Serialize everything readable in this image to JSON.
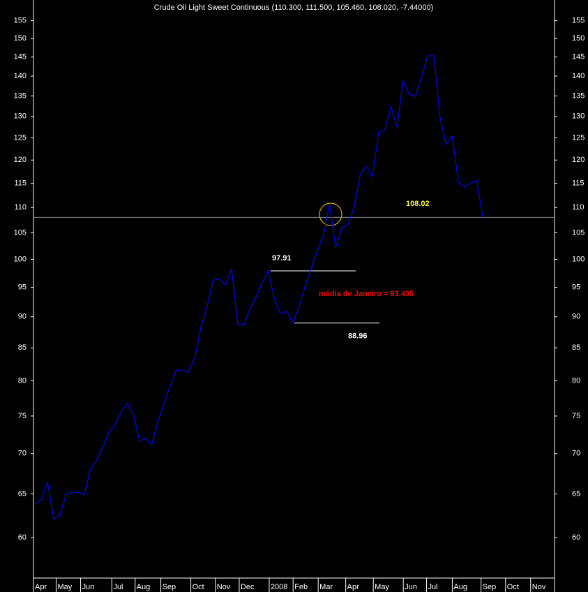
{
  "chart_data": {
    "type": "line",
    "title": "Crude Oil Light Sweet Continuous (110.300, 111.500, 105.460, 108.020, -7.44000)",
    "log_scale": true,
    "ylim": [
      55.7,
      161
    ],
    "yticks": [
      60,
      65,
      70,
      75,
      80,
      85,
      90,
      95,
      100,
      105,
      110,
      115,
      120,
      125,
      130,
      135,
      140,
      145,
      150,
      155
    ],
    "xlim": [
      -0.3,
      84.8
    ],
    "xticks": [
      {
        "value": -0.3,
        "label": "Apr"
      },
      {
        "value": 3.4,
        "label": "May"
      },
      {
        "value": 7.4,
        "label": "Jun"
      },
      {
        "value": 12.5,
        "label": "Jul"
      },
      {
        "value": 16.3,
        "label": "Aug"
      },
      {
        "value": 20.5,
        "label": "Sep"
      },
      {
        "value": 25.4,
        "label": "Oct"
      },
      {
        "value": 29.4,
        "label": "Nov"
      },
      {
        "value": 33.3,
        "label": "Dec"
      },
      {
        "value": 38.2,
        "label": "2008"
      },
      {
        "value": 42.1,
        "label": "Feb"
      },
      {
        "value": 46.2,
        "label": "Mar"
      },
      {
        "value": 50.7,
        "label": "Apr"
      },
      {
        "value": 55.2,
        "label": "May"
      },
      {
        "value": 60.1,
        "label": "Jun"
      },
      {
        "value": 63.9,
        "label": "Jul"
      },
      {
        "value": 68.1,
        "label": "Aug"
      },
      {
        "value": 72.8,
        "label": "Sep"
      },
      {
        "value": 76.8,
        "label": "Oct"
      },
      {
        "value": 80.9,
        "label": "Nov"
      }
    ],
    "series": [
      {
        "color": "#0000ff",
        "values": [
          63.8,
          64.3,
          66.4,
          62.1,
          62.5,
          64.9,
          65.2,
          65.2,
          64.9,
          68.0,
          69.1,
          70.8,
          72.7,
          73.8,
          75.5,
          76.8,
          75.3,
          71.6,
          72.0,
          71.2,
          74.2,
          76.7,
          79.2,
          81.6,
          81.6,
          81.3,
          83.4,
          88.3,
          91.6,
          96.2,
          96.5,
          95.4,
          98.3,
          88.9,
          88.6,
          91.2,
          93.3,
          95.8,
          97.91,
          93.0,
          90.5,
          90.9,
          88.96,
          91.6,
          95.2,
          98.4,
          101.5,
          104.6,
          110.7,
          102.2,
          106.0,
          106.5,
          110.1,
          116.8,
          118.6,
          116.5,
          126.2,
          126.8,
          132.3,
          127.5,
          138.7,
          135.4,
          134.9,
          139.8,
          145.3,
          145.3,
          129.8,
          123.5,
          125.4,
          115.3,
          114.2,
          115.0,
          115.6,
          108.02
        ]
      }
    ],
    "hlines": [
      108.02,
      97.91,
      88.96
    ],
    "annotations": [
      "média  de Janeiro = 93.435"
    ]
  }
}
